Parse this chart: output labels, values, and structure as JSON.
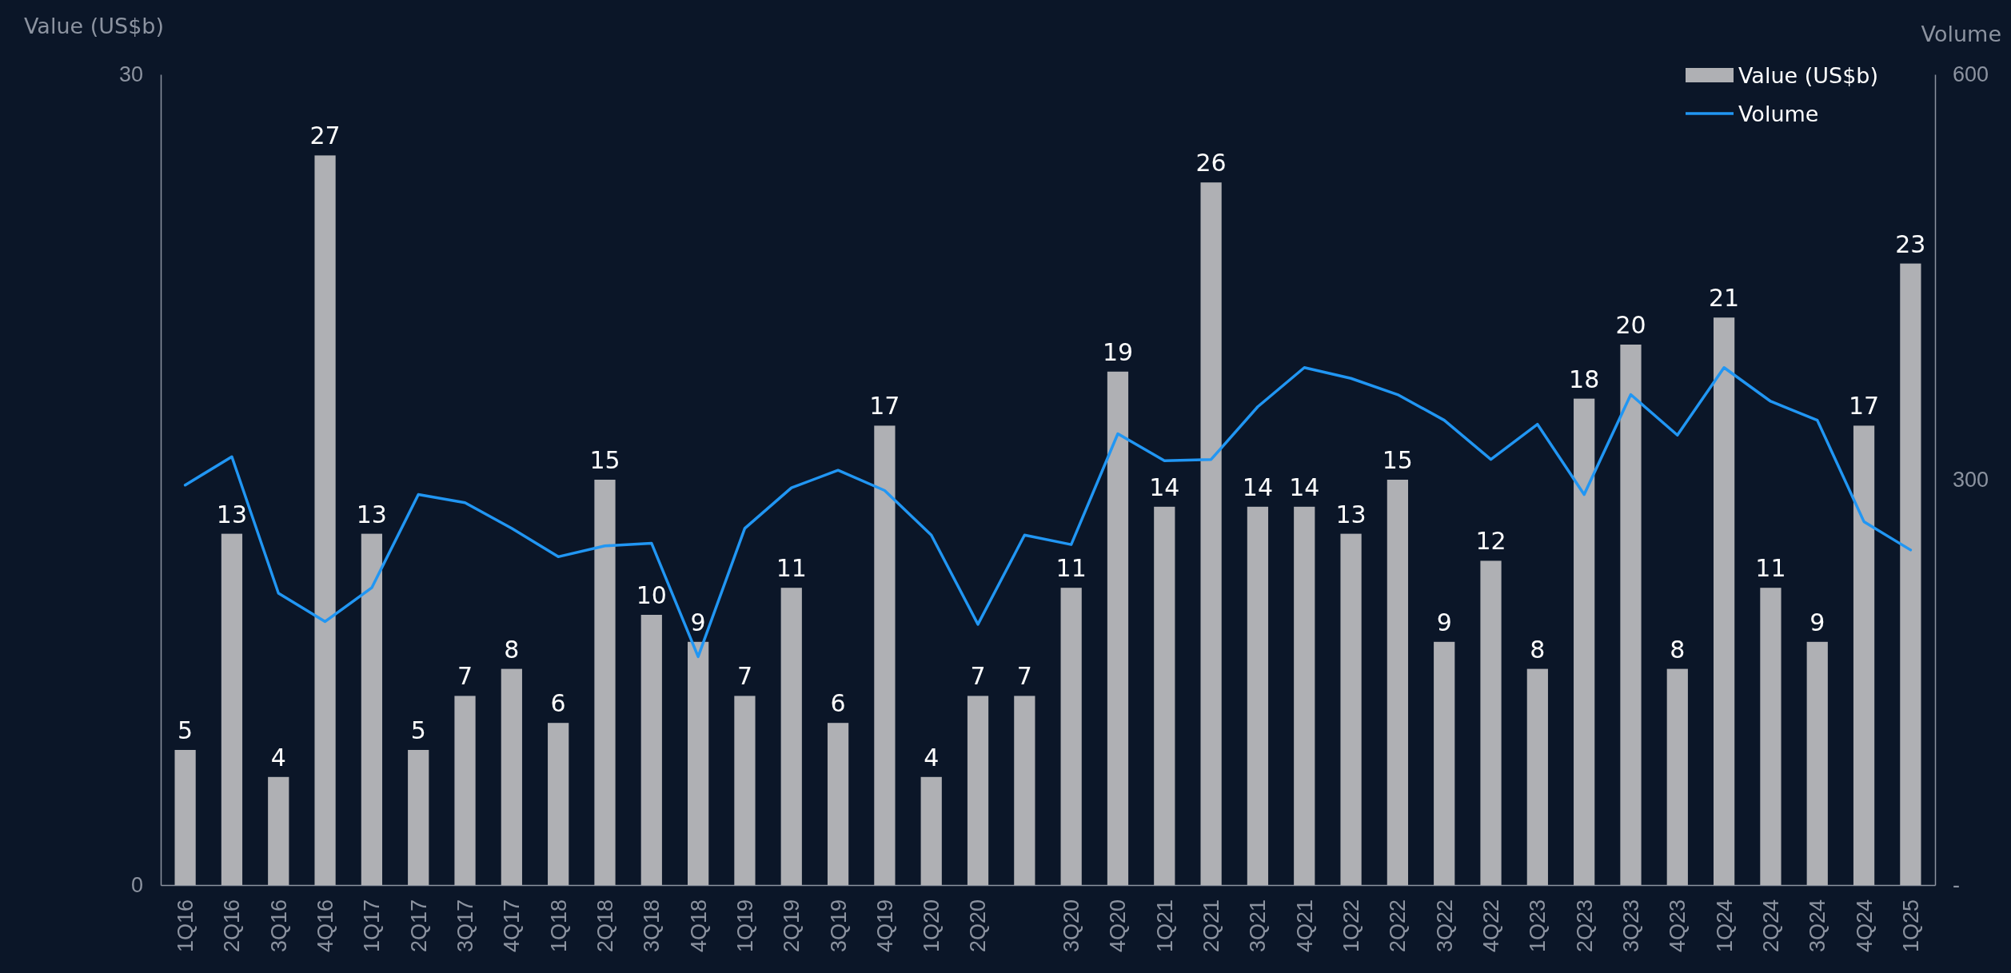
{
  "chart_data": {
    "type": "bar",
    "ylabel": "Value (US$b)",
    "y2label": "Volume",
    "categories": [
      "1Q16",
      "2Q16",
      "3Q16",
      "4Q16",
      "1Q17",
      "2Q17",
      "3Q17",
      "4Q17",
      "1Q18",
      "2Q18",
      "3Q18",
      "4Q18",
      "1Q19",
      "2Q19",
      "3Q19",
      "4Q19",
      "1Q20",
      "2Q20",
      null,
      "3Q20",
      "4Q20",
      "1Q21",
      "2Q21",
      "3Q21",
      "4Q21",
      "1Q22",
      "2Q22",
      "3Q22",
      "4Q22",
      "1Q23",
      "2Q23",
      "3Q23",
      "4Q23",
      "1Q24",
      "2Q24",
      "3Q24",
      "4Q24",
      "1Q25"
    ],
    "series": [
      {
        "name": "Value (US$b)",
        "color": "#afb0b4",
        "values": [
          5,
          13,
          4,
          27,
          13,
          5,
          7,
          8,
          6,
          15,
          10,
          9,
          7,
          11,
          6,
          17,
          4,
          7,
          7,
          11,
          19,
          14,
          26,
          14,
          14,
          13,
          15,
          9,
          12,
          8,
          18,
          20,
          8,
          21,
          11,
          9,
          17,
          23
        ],
        "value_labels": [
          "5",
          "13",
          "4",
          "27",
          "13",
          "5",
          "7",
          "8",
          "6",
          "15",
          "10",
          "9",
          "7",
          "11",
          "6",
          "17",
          "4",
          "7",
          "7",
          "11",
          "19",
          "14",
          "26",
          "14",
          "14",
          "13",
          "15",
          "9",
          "12",
          "8",
          "18",
          "20",
          "8",
          "21",
          "11",
          "9",
          "17",
          "23"
        ]
      },
      {
        "name": "Volume",
        "type": "line",
        "axis": "y2",
        "color": "#2196f3",
        "values": [
          296,
          317,
          216,
          195,
          220,
          289,
          283,
          264,
          243,
          251,
          253,
          169,
          264,
          294,
          307,
          292,
          259,
          193,
          259,
          252,
          334,
          314,
          315,
          354,
          383,
          375,
          363,
          344,
          315,
          341,
          289,
          363,
          333,
          383,
          358,
          344,
          269,
          248
        ]
      }
    ],
    "ylim": [
      0,
      30
    ],
    "yticks": [
      0,
      30
    ],
    "y2lim": [
      0,
      600
    ],
    "y2ticks": [
      {
        "value": 0,
        "label": "-"
      },
      300,
      600
    ],
    "legend": "top right",
    "grid": false,
    "marker": "none",
    "line_style": "solid"
  }
}
